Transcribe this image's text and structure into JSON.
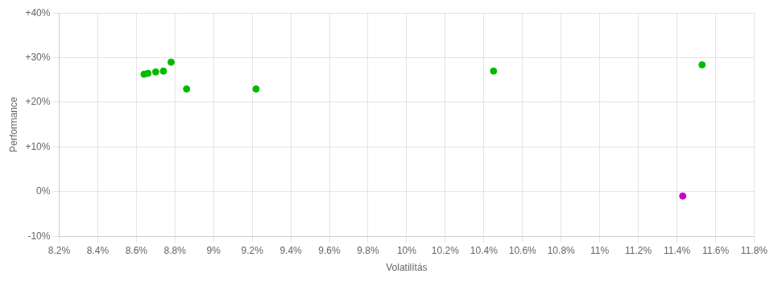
{
  "chart_data": {
    "type": "scatter",
    "xlabel": "Volatilítás",
    "ylabel": "Performance",
    "series": [
      {
        "color": "#00bb00",
        "x": [
          0.0878,
          0.0874,
          0.087,
          0.0866,
          0.0864,
          0.0886,
          0.0922,
          0.1045,
          0.1153
        ],
        "values": [
          0.29,
          0.27,
          0.268,
          0.265,
          0.263,
          0.23,
          0.23,
          0.27,
          0.284
        ]
      },
      {
        "color": "#cc00cc",
        "x": [
          0.1143
        ],
        "values": [
          -0.01
        ]
      }
    ],
    "xlim": [
      0.082,
      0.118
    ],
    "ylim": [
      -0.1,
      0.4
    ],
    "xticks": [
      {
        "value": 0.082,
        "label": "8.2%"
      },
      {
        "value": 0.084,
        "label": "8.4%"
      },
      {
        "value": 0.086,
        "label": "8.6%"
      },
      {
        "value": 0.088,
        "label": "8.8%"
      },
      {
        "value": 0.09,
        "label": "9%"
      },
      {
        "value": 0.092,
        "label": "9.2%"
      },
      {
        "value": 0.094,
        "label": "9.4%"
      },
      {
        "value": 0.096,
        "label": "9.6%"
      },
      {
        "value": 0.098,
        "label": "9.8%"
      },
      {
        "value": 0.1,
        "label": "10%"
      },
      {
        "value": 0.102,
        "label": "10.2%"
      },
      {
        "value": 0.104,
        "label": "10.4%"
      },
      {
        "value": 0.106,
        "label": "10.6%"
      },
      {
        "value": 0.108,
        "label": "10.8%"
      },
      {
        "value": 0.11,
        "label": "11%"
      },
      {
        "value": 0.112,
        "label": "11.2%"
      },
      {
        "value": 0.114,
        "label": "11.4%"
      },
      {
        "value": 0.116,
        "label": "11.6%"
      },
      {
        "value": 0.118,
        "label": "11.8%"
      }
    ],
    "yticks": [
      {
        "value": -0.1,
        "label": "-10%"
      },
      {
        "value": 0.0,
        "label": "0%"
      },
      {
        "value": 0.1,
        "label": "+10%"
      },
      {
        "value": 0.2,
        "label": "+20%"
      },
      {
        "value": 0.3,
        "label": "+30%"
      },
      {
        "value": 0.4,
        "label": "+40%"
      }
    ],
    "grid": true
  }
}
